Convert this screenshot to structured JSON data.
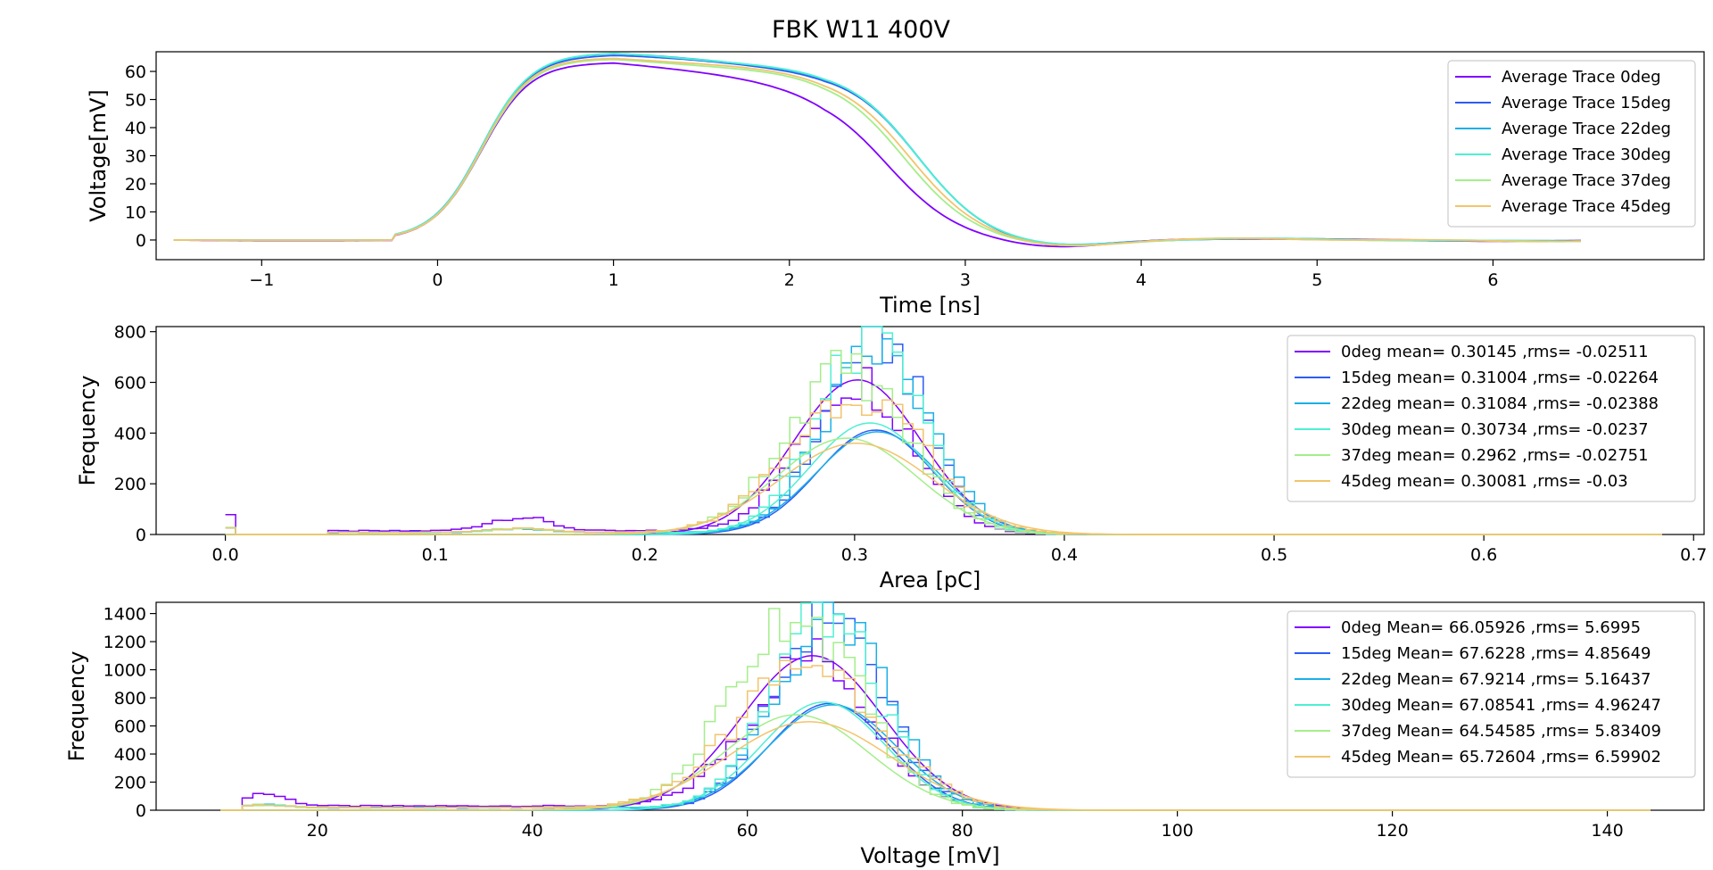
{
  "figure_title": "FBK W11 400V",
  "colors": {
    "0deg": "#8000ff",
    "15deg": "#2c5cf6",
    "22deg": "#1ab0e6",
    "30deg": "#4ef0d2",
    "37deg": "#a4ee8a",
    "45deg": "#f2c46c"
  },
  "chart_data": [
    {
      "type": "line",
      "name": "top",
      "xlabel": "Time [ns]",
      "ylabel": "Voltage[mV]",
      "xlim": [
        -1.6,
        7.2
      ],
      "ylim": [
        -7,
        67
      ],
      "xticks": [
        -1,
        0,
        1,
        2,
        3,
        4,
        5,
        6
      ],
      "xtick_labels": [
        "−1",
        "0",
        "1",
        "2",
        "3",
        "4",
        "5",
        "6"
      ],
      "yticks": [
        0,
        10,
        20,
        30,
        40,
        50,
        60
      ],
      "grid": false,
      "legend_position": "upper-right",
      "series": [
        {
          "name": "Average Trace 0deg",
          "key": "0deg",
          "peak": 61,
          "fall": 2.55
        },
        {
          "name": "Average Trace 15deg",
          "key": "15deg",
          "peak": 63.5,
          "fall": 2.72
        },
        {
          "name": "Average Trace 22deg",
          "key": "22deg",
          "peak": 64,
          "fall": 2.72
        },
        {
          "name": "Average Trace 30deg",
          "key": "30deg",
          "peak": 64,
          "fall": 2.72
        },
        {
          "name": "Average Trace 37deg",
          "key": "37deg",
          "peak": 62,
          "fall": 2.65
        },
        {
          "name": "Average Trace 45deg",
          "key": "45deg",
          "peak": 62.5,
          "fall": 2.68
        }
      ]
    },
    {
      "type": "histogram",
      "name": "area",
      "xlabel": "Area [pC]",
      "ylabel": "Frequency",
      "xlim": [
        -0.033,
        0.705
      ],
      "ylim": [
        0,
        820
      ],
      "xticks": [
        0.0,
        0.1,
        0.2,
        0.3,
        0.4,
        0.5,
        0.6,
        0.7
      ],
      "xtick_labels": [
        "0.0",
        "0.1",
        "0.2",
        "0.3",
        "0.4",
        "0.5",
        "0.6",
        "0.7"
      ],
      "yticks": [
        0,
        200,
        400,
        600,
        800
      ],
      "grid": false,
      "legend_position": "upper-right",
      "bin_range": [
        0.0,
        0.685
      ],
      "bins": 140,
      "series": [
        {
          "name": "0deg mean= 0.30145 ,rms= -0.02511",
          "key": "0deg",
          "mean": 0.30145,
          "rms": 0.02511,
          "hist_peak": 610,
          "fit_peak": 610
        },
        {
          "name": "15deg mean= 0.31004 ,rms= -0.02264",
          "key": "15deg",
          "mean": 0.31004,
          "rms": 0.02264,
          "hist_peak": 780,
          "fit_peak": 412
        },
        {
          "name": "22deg mean= 0.31084 ,rms= -0.02388",
          "key": "22deg",
          "mean": 0.31084,
          "rms": 0.02388,
          "hist_peak": 720,
          "fit_peak": 405
        },
        {
          "name": "30deg mean= 0.30734 ,rms= -0.0237",
          "key": "30deg",
          "mean": 0.30734,
          "rms": 0.0237,
          "hist_peak": 760,
          "fit_peak": 440
        },
        {
          "name": "37deg mean= 0.2962 ,rms= -0.02751",
          "key": "37deg",
          "mean": 0.2962,
          "rms": 0.02751,
          "hist_peak": 650,
          "fit_peak": 380
        },
        {
          "name": "45deg mean= 0.30081 ,rms= -0.03",
          "key": "45deg",
          "mean": 0.30081,
          "rms": 0.03,
          "hist_peak": 560,
          "fit_peak": 360
        }
      ]
    },
    {
      "type": "histogram",
      "name": "voltage",
      "xlabel": "Voltage [mV]",
      "ylabel": "Frequency",
      "xlim": [
        5,
        149
      ],
      "ylim": [
        0,
        1480
      ],
      "xticks": [
        20,
        40,
        60,
        80,
        100,
        120,
        140
      ],
      "xtick_labels": [
        "20",
        "40",
        "60",
        "80",
        "100",
        "120",
        "140"
      ],
      "yticks": [
        0,
        200,
        400,
        600,
        800,
        1000,
        1200,
        1400
      ],
      "grid": false,
      "legend_position": "upper-right",
      "bin_range": [
        11,
        144
      ],
      "bins": 133,
      "series": [
        {
          "name": "0deg Mean= 66.05926 ,rms= 5.6995",
          "key": "0deg",
          "mean": 66.05926,
          "rms": 5.6995,
          "hist_peak": 1100,
          "fit_peak": 1100
        },
        {
          "name": "15deg Mean= 67.6228 ,rms= 4.85649",
          "key": "15deg",
          "mean": 67.6228,
          "rms": 4.85649,
          "hist_peak": 1420,
          "fit_peak": 760
        },
        {
          "name": "22deg Mean= 67.9214 ,rms= 5.16437",
          "key": "22deg",
          "mean": 67.9214,
          "rms": 5.16437,
          "hist_peak": 1350,
          "fit_peak": 750
        },
        {
          "name": "30deg Mean= 67.08541 ,rms= 4.96247",
          "key": "30deg",
          "mean": 67.08541,
          "rms": 4.96247,
          "hist_peak": 1400,
          "fit_peak": 770
        },
        {
          "name": "37deg Mean= 64.54585 ,rms= 5.83409",
          "key": "37deg",
          "mean": 64.54585,
          "rms": 5.83409,
          "hist_peak": 1420,
          "fit_peak": 680
        },
        {
          "name": "45deg Mean= 65.72604 ,rms= 6.59902",
          "key": "45deg",
          "mean": 65.72604,
          "rms": 6.59902,
          "hist_peak": 1050,
          "fit_peak": 630
        }
      ]
    }
  ]
}
